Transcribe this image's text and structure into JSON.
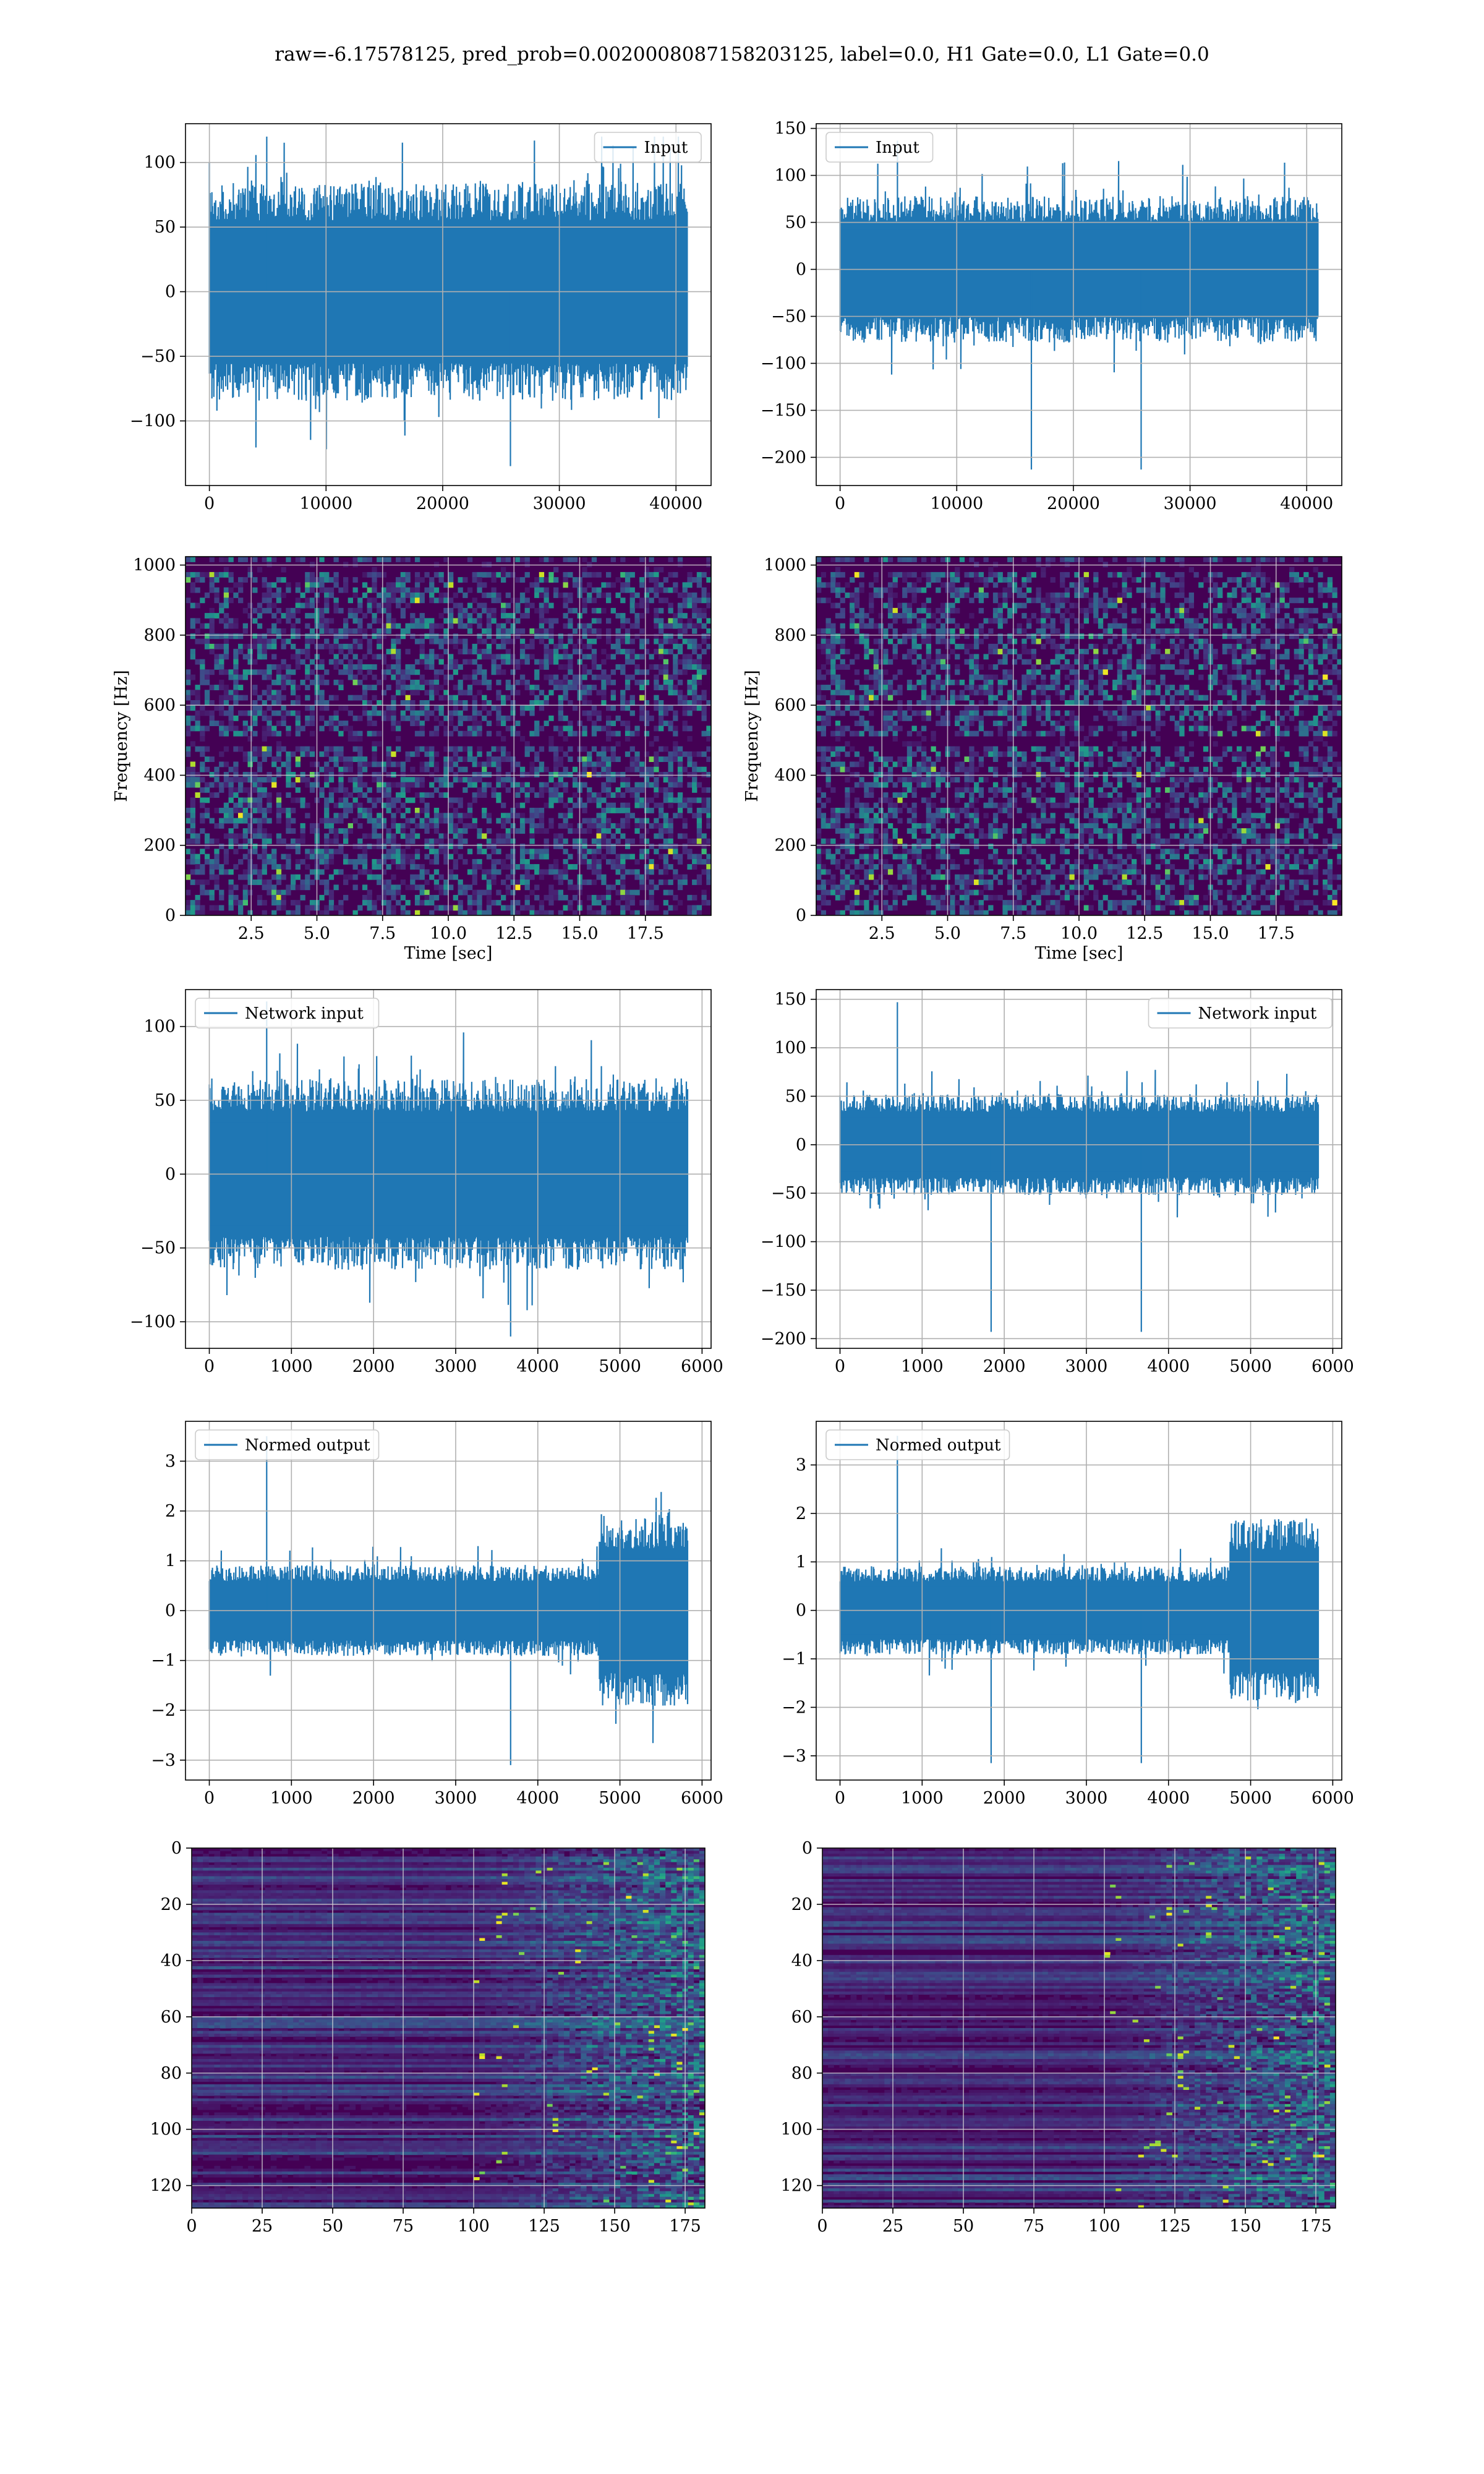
{
  "suptitle": "raw=-6.17578125, pred_prob=0.0020008087158203125, label=0.0, H1 Gate=0.0, L1 Gate=0.0",
  "colors": {
    "line": "#1f77b4",
    "grid": "#b0b0b0",
    "viridis_dark": "#440154",
    "viridis_bright": "#fde725"
  },
  "chart_data": [
    {
      "id": "input-h1",
      "type": "line",
      "legend": "Input",
      "legend_loc": "upper right",
      "grid": true,
      "xlim": [
        -2048,
        43008
      ],
      "ylim": [
        -150,
        130
      ],
      "xticks": [
        0,
        10000,
        20000,
        30000,
        40000
      ],
      "xticklabels": [
        "0",
        "10000",
        "20000",
        "30000",
        "40000"
      ],
      "yticks": [
        -100,
        -50,
        0,
        50,
        100
      ],
      "yticklabels": [
        "−100",
        "−50",
        "0",
        "50",
        "100"
      ],
      "series": {
        "n": 40960,
        "core_amp": 65,
        "std": 22,
        "min": -135,
        "max": 120
      }
    },
    {
      "id": "input-l1",
      "type": "line",
      "legend": "Input",
      "legend_loc": "upper left",
      "grid": true,
      "xlim": [
        -2048,
        43008
      ],
      "ylim": [
        -230,
        155
      ],
      "xticks": [
        0,
        10000,
        20000,
        30000,
        40000
      ],
      "xticklabels": [
        "0",
        "10000",
        "20000",
        "30000",
        "40000"
      ],
      "yticks": [
        -200,
        -150,
        -100,
        -50,
        0,
        50,
        100,
        150
      ],
      "yticklabels": [
        "−200",
        "−150",
        "−100",
        "−50",
        "0",
        "50",
        "100",
        "150"
      ],
      "series": {
        "n": 40960,
        "core_amp": 60,
        "std": 20,
        "min": -213,
        "max": 137,
        "glitch_x": 16400
      }
    },
    {
      "id": "spec-h1",
      "type": "heatmap",
      "grid": true,
      "xlabel": "Time [sec]",
      "ylabel": "Frequency [Hz]",
      "xlim": [
        0,
        20
      ],
      "ylim": [
        0,
        1024
      ],
      "xticks": [
        2.5,
        5.0,
        7.5,
        10.0,
        12.5,
        15.0,
        17.5
      ],
      "xticklabels": [
        "2.5",
        "5.0",
        "7.5",
        "10.0",
        "12.5",
        "15.0",
        "17.5"
      ],
      "yticks": [
        0,
        200,
        400,
        600,
        800,
        1000
      ],
      "yticklabels": [
        "0",
        "200",
        "400",
        "600",
        "800",
        "1000"
      ],
      "dark_bands_hz": [
        500,
        1000
      ],
      "colormap": "viridis"
    },
    {
      "id": "spec-l1",
      "type": "heatmap",
      "grid": true,
      "xlabel": "Time [sec]",
      "ylabel": "Frequency [Hz]",
      "xlim": [
        0,
        20
      ],
      "ylim": [
        0,
        1024
      ],
      "xticks": [
        2.5,
        5.0,
        7.5,
        10.0,
        12.5,
        15.0,
        17.5
      ],
      "xticklabels": [
        "2.5",
        "5.0",
        "7.5",
        "10.0",
        "12.5",
        "15.0",
        "17.5"
      ],
      "yticks": [
        0,
        200,
        400,
        600,
        800,
        1000
      ],
      "yticklabels": [
        "0",
        "200",
        "400",
        "600",
        "800",
        "1000"
      ],
      "dark_bands_hz": [
        500,
        1000
      ],
      "colormap": "viridis"
    },
    {
      "id": "netin-h1",
      "type": "line",
      "legend": "Network input",
      "legend_loc": "upper left",
      "grid": true,
      "xlim": [
        -290,
        6110
      ],
      "ylim": [
        -118,
        125
      ],
      "xticks": [
        0,
        1000,
        2000,
        3000,
        4000,
        5000,
        6000
      ],
      "xticklabels": [
        "0",
        "1000",
        "2000",
        "3000",
        "4000",
        "5000",
        "6000"
      ],
      "yticks": [
        -100,
        -50,
        0,
        50,
        100
      ],
      "yticklabels": [
        "−100",
        "−50",
        "0",
        "50",
        "100"
      ],
      "series": {
        "n": 5824,
        "core_amp": 50,
        "std": 25,
        "min": -110,
        "max": 117
      }
    },
    {
      "id": "netin-l1",
      "type": "line",
      "legend": "Network input",
      "legend_loc": "upper right",
      "grid": true,
      "xlim": [
        -290,
        6110
      ],
      "ylim": [
        -210,
        160
      ],
      "xticks": [
        0,
        1000,
        2000,
        3000,
        4000,
        5000,
        6000
      ],
      "xticklabels": [
        "0",
        "1000",
        "2000",
        "3000",
        "4000",
        "5000",
        "6000"
      ],
      "yticks": [
        -200,
        -150,
        -100,
        -50,
        0,
        50,
        100,
        150
      ],
      "yticklabels": [
        "−200",
        "−150",
        "−100",
        "−50",
        "0",
        "50",
        "100",
        "150"
      ],
      "series": {
        "n": 5824,
        "core_amp": 40,
        "std": 20,
        "min": -193,
        "max": 147,
        "glitch_x": 1840
      }
    },
    {
      "id": "out-h1",
      "type": "line",
      "legend": "Normed output",
      "legend_loc": "upper left",
      "grid": true,
      "xlim": [
        -290,
        6110
      ],
      "ylim": [
        -3.4,
        3.8
      ],
      "xticks": [
        0,
        1000,
        2000,
        3000,
        4000,
        5000,
        6000
      ],
      "xticklabels": [
        "0",
        "1000",
        "2000",
        "3000",
        "4000",
        "5000",
        "6000"
      ],
      "yticks": [
        -3,
        -2,
        -1,
        0,
        1,
        2,
        3
      ],
      "yticklabels": [
        "−3",
        "−2",
        "−1",
        "0",
        "1",
        "2",
        "3"
      ],
      "series": {
        "n": 5824,
        "core_amp": 0.7,
        "std": 0.35,
        "min": -3.1,
        "max": 3.5,
        "burst_start": 4750
      }
    },
    {
      "id": "out-l1",
      "type": "line",
      "legend": "Normed output",
      "legend_loc": "upper left",
      "grid": true,
      "xlim": [
        -290,
        6110
      ],
      "ylim": [
        -3.5,
        3.9
      ],
      "xticks": [
        0,
        1000,
        2000,
        3000,
        4000,
        5000,
        6000
      ],
      "xticklabels": [
        "0",
        "1000",
        "2000",
        "3000",
        "4000",
        "5000",
        "6000"
      ],
      "yticks": [
        -3,
        -2,
        -1,
        0,
        1,
        2,
        3
      ],
      "yticklabels": [
        "−3",
        "−2",
        "−1",
        "0",
        "1",
        "2",
        "3"
      ],
      "series": {
        "n": 5824,
        "core_amp": 0.7,
        "std": 0.35,
        "min": -3.15,
        "max": 3.6,
        "burst_start": 4750,
        "glitch_x": 1840
      }
    },
    {
      "id": "feat-h1",
      "type": "heatmap",
      "grid": true,
      "xlim": [
        0,
        182
      ],
      "ylim": [
        128,
        0
      ],
      "xticks": [
        0,
        25,
        50,
        75,
        100,
        125,
        150,
        175
      ],
      "xticklabels": [
        "0",
        "25",
        "50",
        "75",
        "100",
        "125",
        "150",
        "175"
      ],
      "yticks": [
        0,
        20,
        40,
        60,
        80,
        100,
        120
      ],
      "yticklabels": [
        "0",
        "20",
        "40",
        "60",
        "80",
        "100",
        "120"
      ],
      "colormap": "viridis",
      "activity_start": 100
    },
    {
      "id": "feat-l1",
      "type": "heatmap",
      "grid": true,
      "xlim": [
        0,
        182
      ],
      "ylim": [
        128,
        0
      ],
      "xticks": [
        0,
        25,
        50,
        75,
        100,
        125,
        150,
        175
      ],
      "xticklabels": [
        "0",
        "25",
        "50",
        "75",
        "100",
        "125",
        "150",
        "175"
      ],
      "yticks": [
        0,
        20,
        40,
        60,
        80,
        100,
        120
      ],
      "yticklabels": [
        "0",
        "20",
        "40",
        "60",
        "80",
        "100",
        "120"
      ],
      "colormap": "viridis",
      "activity_start": 100
    }
  ]
}
